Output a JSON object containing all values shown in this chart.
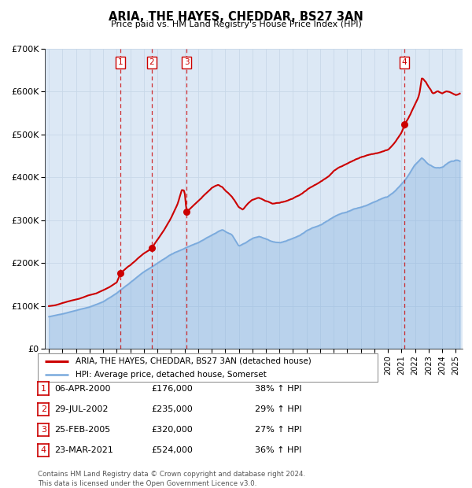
{
  "title": "ARIA, THE HAYES, CHEDDAR, BS27 3AN",
  "subtitle": "Price paid vs. HM Land Registry's House Price Index (HPI)",
  "ylim": [
    0,
    700000
  ],
  "yticks": [
    0,
    100000,
    200000,
    300000,
    400000,
    500000,
    600000,
    700000
  ],
  "ytick_labels": [
    "£0",
    "£100K",
    "£200K",
    "£300K",
    "£400K",
    "£500K",
    "£600K",
    "£700K"
  ],
  "xlim_start": 1994.7,
  "xlim_end": 2025.5,
  "xtick_years": [
    1995,
    1996,
    1997,
    1998,
    1999,
    2000,
    2001,
    2002,
    2003,
    2004,
    2005,
    2006,
    2007,
    2008,
    2009,
    2010,
    2011,
    2012,
    2013,
    2014,
    2015,
    2016,
    2017,
    2018,
    2019,
    2020,
    2021,
    2022,
    2023,
    2024,
    2025
  ],
  "sale_dates": [
    2000.27,
    2002.57,
    2005.15,
    2021.22
  ],
  "sale_prices": [
    176000,
    235000,
    320000,
    524000
  ],
  "sale_labels": [
    "1",
    "2",
    "3",
    "4"
  ],
  "red_line_color": "#cc0000",
  "blue_line_color": "#7aaadd",
  "sale_marker_color": "#cc0000",
  "vline_color": "#cc0000",
  "grid_color": "#c8d8e8",
  "plot_bg_color": "#dce8f5",
  "legend_label_red": "ARIA, THE HAYES, CHEDDAR, BS27 3AN (detached house)",
  "legend_label_blue": "HPI: Average price, detached house, Somerset",
  "table_rows": [
    [
      "1",
      "06-APR-2000",
      "£176,000",
      "38% ↑ HPI"
    ],
    [
      "2",
      "29-JUL-2002",
      "£235,000",
      "29% ↑ HPI"
    ],
    [
      "3",
      "25-FEB-2005",
      "£320,000",
      "27% ↑ HPI"
    ],
    [
      "4",
      "23-MAR-2021",
      "£524,000",
      "36% ↑ HPI"
    ]
  ],
  "footnote": "Contains HM Land Registry data © Crown copyright and database right 2024.\nThis data is licensed under the Open Government Licence v3.0."
}
